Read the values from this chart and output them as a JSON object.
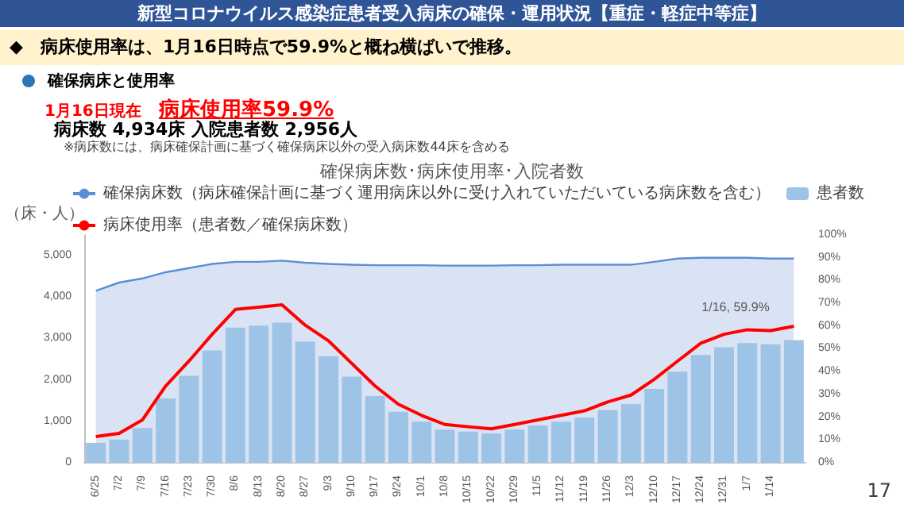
{
  "chart_data": {
    "type": "bar",
    "title": "新型コロナウイルス感染症患者受入病床の確保・運用状況【重症・軽症中等症】",
    "subtitle": "◆　病床使用率は、1月16日時点で59.9%と概ね横ばいで推移。",
    "annotations": [
      "確保病床と使用率",
      "1月16日現在",
      "病床使用率59.9%",
      "病床数 4,934床  入院患者数  2,956人",
      "※病床数には、病床確保計画に基づく確保病床以外の受入病床数44床を含める",
      "確保病床数･病床使用率･入院者数",
      "1/16, 59.9%",
      "17"
    ],
    "ylabel": "（床・人）",
    "categories": [
      "6/25",
      "7/2",
      "7/9",
      "7/16",
      "7/23",
      "7/30",
      "8/6",
      "8/13",
      "8/20",
      "8/27",
      "9/3",
      "9/10",
      "9/17",
      "9/24",
      "10/1",
      "10/8",
      "10/15",
      "10/22",
      "10/29",
      "11/5",
      "11/12",
      "11/19",
      "11/26",
      "12/3",
      "12/10",
      "12/17",
      "12/24",
      "12/31",
      "1/7",
      "1/14",
      null
    ],
    "series": [
      {
        "name": "確保病床数（病床確保計画に基づく運用病床以外に受け入れていただいている病床数を含む）",
        "type": "area",
        "color": "#5b8ed6",
        "values": [
          4150,
          4350,
          4450,
          4600,
          4700,
          4800,
          4850,
          4850,
          4880,
          4830,
          4800,
          4780,
          4770,
          4770,
          4770,
          4760,
          4760,
          4760,
          4770,
          4770,
          4780,
          4780,
          4780,
          4780,
          4850,
          4930,
          4950,
          4950,
          4950,
          4930,
          4930
        ]
      },
      {
        "name": "患者数",
        "color": "#9dc3e6",
        "values": [
          480,
          560,
          840,
          1550,
          2100,
          2710,
          3260,
          3310,
          3380,
          2920,
          2570,
          2080,
          1610,
          1230,
          990,
          800,
          750,
          710,
          800,
          900,
          990,
          1090,
          1270,
          1420,
          1780,
          2200,
          2600,
          2790,
          2890,
          2860,
          2960
        ]
      },
      {
        "name": "病床使用率（患者数／確保病床数）",
        "type": "line",
        "axis": "y2",
        "color": "#ff0000",
        "values": [
          11.5,
          12.9,
          18.8,
          33.7,
          44.6,
          56.4,
          67.3,
          68.3,
          69.3,
          60.4,
          53.5,
          43.6,
          33.7,
          25.7,
          20.8,
          16.8,
          15.8,
          14.9,
          16.8,
          18.8,
          20.8,
          22.8,
          26.7,
          29.7,
          36.6,
          44.6,
          52.5,
          56.4,
          58.4,
          58.0,
          59.9
        ]
      }
    ],
    "ylim": [
      0,
      5500
    ],
    "yticks": [
      0,
      {
        "value": 1000,
        "label": "1,000"
      },
      {
        "value": 2000,
        "label": "2,000"
      },
      {
        "value": 3000,
        "label": "3,000"
      },
      {
        "value": 4000,
        "label": "4,000"
      },
      {
        "value": 5000,
        "label": "5,000"
      }
    ],
    "y2lim": [
      0,
      100
    ],
    "y2ticks": [
      {
        "value": 0,
        "label": "0%"
      },
      {
        "value": 10,
        "label": "10%"
      },
      {
        "value": 20,
        "label": "20%"
      },
      {
        "value": 30,
        "label": "30%"
      },
      {
        "value": 40,
        "label": "40%"
      },
      {
        "value": 50,
        "label": "50%"
      },
      {
        "value": 60,
        "label": "60%"
      },
      {
        "value": 70,
        "label": "70%"
      },
      {
        "value": 80,
        "label": "80%"
      },
      {
        "value": 90,
        "label": "90%"
      },
      {
        "value": 100,
        "label": "100%"
      }
    ],
    "legend": "top",
    "grid": false,
    "marker": "none"
  }
}
